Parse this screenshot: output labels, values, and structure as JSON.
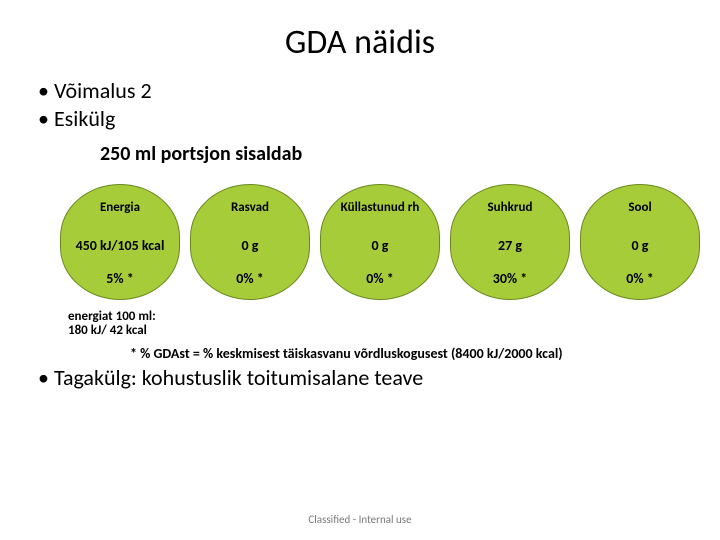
{
  "title": "GDA näidis",
  "bullets": [
    "Võimalus 2",
    "Esikülg"
  ],
  "subheading": "250 ml portsjon sisaldab",
  "gda": {
    "columns": [
      {
        "header": "Energia",
        "mid": "450 kJ/105 kcal",
        "bot": "5% *"
      },
      {
        "header": "Rasvad",
        "mid": "0 g",
        "bot": "0% *"
      },
      {
        "header": "Küllastunud rh",
        "mid": "0 g",
        "bot": "0% *"
      },
      {
        "header": "Suhkrud",
        "mid": "27 g",
        "bot": "30% *"
      },
      {
        "header": "Sool",
        "mid": "0 g",
        "bot": "0% *"
      }
    ],
    "pill_fill": "#a7cc3a",
    "pill_border": "#6a8a1f"
  },
  "energy_note_l1": "energiat 100 ml:",
  "energy_note_l2": "180 kJ/ 42 kcal",
  "footnote": "* % GDAst = % keskmisest täiskasvanu võrdluskogusest (8400 kJ/2000 kcal)",
  "bottom_bullet": "Tagakülg: kohustuslik toitumisalane teave",
  "classification": "Classified - Internal use"
}
